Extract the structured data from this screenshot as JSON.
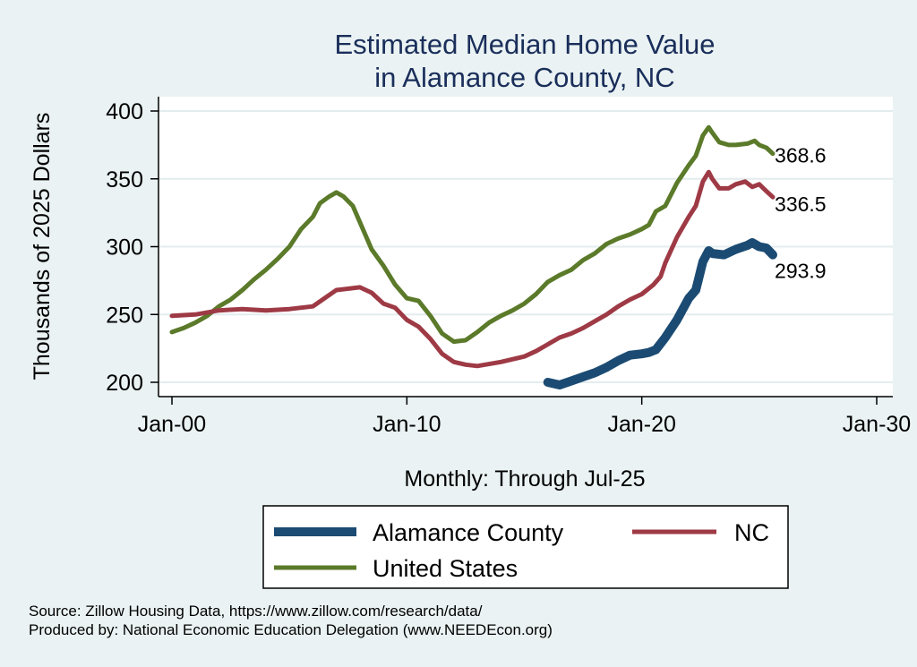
{
  "chart_data": {
    "type": "line",
    "title": [
      "Estimated Median Home Value",
      "in Alamance County, NC"
    ],
    "xlabel": "Monthly: Through Jul-25",
    "ylabel": "Thousands of 2025 Dollars",
    "x_ticks": [
      {
        "label": "Jan-00",
        "year": 2000
      },
      {
        "label": "Jan-10",
        "year": 2010
      },
      {
        "label": "Jan-20",
        "year": 2020
      },
      {
        "label": "Jan-30",
        "year": 2030
      }
    ],
    "y_ticks": [
      200,
      250,
      300,
      350,
      400
    ],
    "xlim": [
      2000,
      2030
    ],
    "ylim": [
      200,
      400
    ],
    "grid": true,
    "legend_position": "bottom",
    "series": [
      {
        "name": "Alamance County",
        "color": "#1b4b73",
        "width": 10,
        "end_label": "293.9",
        "points": [
          [
            2016.0,
            200
          ],
          [
            2016.5,
            198
          ],
          [
            2017.0,
            201
          ],
          [
            2017.5,
            204
          ],
          [
            2018.0,
            207
          ],
          [
            2018.5,
            211
          ],
          [
            2019.0,
            216
          ],
          [
            2019.5,
            220
          ],
          [
            2020.0,
            221
          ],
          [
            2020.3,
            222
          ],
          [
            2020.6,
            224
          ],
          [
            2021.0,
            233
          ],
          [
            2021.5,
            246
          ],
          [
            2022.0,
            262
          ],
          [
            2022.3,
            268
          ],
          [
            2022.6,
            289
          ],
          [
            2022.85,
            297
          ],
          [
            2023.0,
            295
          ],
          [
            2023.5,
            294
          ],
          [
            2024.0,
            298
          ],
          [
            2024.5,
            301
          ],
          [
            2024.7,
            303
          ],
          [
            2025.0,
            300
          ],
          [
            2025.3,
            299
          ],
          [
            2025.58,
            294
          ]
        ]
      },
      {
        "name": "NC",
        "color": "#9e3a45",
        "width": 5,
        "end_label": "336.5",
        "points": [
          [
            2000.0,
            249
          ],
          [
            2001.0,
            250
          ],
          [
            2002.0,
            253
          ],
          [
            2003.0,
            254
          ],
          [
            2004.0,
            253
          ],
          [
            2005.0,
            254
          ],
          [
            2006.0,
            256
          ],
          [
            2006.5,
            262
          ],
          [
            2007.0,
            268
          ],
          [
            2008.0,
            270
          ],
          [
            2008.5,
            266
          ],
          [
            2009.0,
            258
          ],
          [
            2009.5,
            255
          ],
          [
            2010.0,
            246
          ],
          [
            2010.5,
            241
          ],
          [
            2011.0,
            232
          ],
          [
            2011.5,
            221
          ],
          [
            2012.0,
            215
          ],
          [
            2012.5,
            213
          ],
          [
            2013.0,
            212
          ],
          [
            2014.0,
            215
          ],
          [
            2015.0,
            219
          ],
          [
            2015.5,
            223
          ],
          [
            2016.0,
            228
          ],
          [
            2016.5,
            233
          ],
          [
            2017.0,
            236
          ],
          [
            2017.5,
            240
          ],
          [
            2018.0,
            245
          ],
          [
            2018.5,
            250
          ],
          [
            2019.0,
            256
          ],
          [
            2019.5,
            261
          ],
          [
            2020.0,
            265
          ],
          [
            2020.5,
            272
          ],
          [
            2020.8,
            278
          ],
          [
            2021.0,
            288
          ],
          [
            2021.5,
            307
          ],
          [
            2022.0,
            322
          ],
          [
            2022.3,
            330
          ],
          [
            2022.6,
            348
          ],
          [
            2022.85,
            355
          ],
          [
            2023.0,
            350
          ],
          [
            2023.3,
            343
          ],
          [
            2023.7,
            343
          ],
          [
            2024.0,
            346
          ],
          [
            2024.4,
            348
          ],
          [
            2024.7,
            344
          ],
          [
            2025.0,
            346
          ],
          [
            2025.3,
            341
          ],
          [
            2025.58,
            336.5
          ]
        ]
      },
      {
        "name": "United States",
        "color": "#5b7a2a",
        "width": 5,
        "end_label": "368.6",
        "points": [
          [
            2000.0,
            237
          ],
          [
            2000.5,
            240
          ],
          [
            2001.0,
            244
          ],
          [
            2001.5,
            249
          ],
          [
            2002.0,
            256
          ],
          [
            2002.5,
            261
          ],
          [
            2003.0,
            268
          ],
          [
            2003.5,
            276
          ],
          [
            2004.0,
            283
          ],
          [
            2004.5,
            291
          ],
          [
            2005.0,
            300
          ],
          [
            2005.5,
            313
          ],
          [
            2006.0,
            322
          ],
          [
            2006.3,
            332
          ],
          [
            2006.7,
            337
          ],
          [
            2007.0,
            340
          ],
          [
            2007.3,
            337
          ],
          [
            2007.7,
            330
          ],
          [
            2008.0,
            318
          ],
          [
            2008.5,
            298
          ],
          [
            2009.0,
            286
          ],
          [
            2009.5,
            272
          ],
          [
            2010.0,
            262
          ],
          [
            2010.5,
            260
          ],
          [
            2011.0,
            249
          ],
          [
            2011.5,
            236
          ],
          [
            2012.0,
            230
          ],
          [
            2012.5,
            231
          ],
          [
            2013.0,
            237
          ],
          [
            2013.5,
            244
          ],
          [
            2014.0,
            249
          ],
          [
            2014.5,
            253
          ],
          [
            2015.0,
            258
          ],
          [
            2015.5,
            265
          ],
          [
            2016.0,
            274
          ],
          [
            2016.5,
            279
          ],
          [
            2017.0,
            283
          ],
          [
            2017.5,
            290
          ],
          [
            2018.0,
            295
          ],
          [
            2018.5,
            302
          ],
          [
            2019.0,
            306
          ],
          [
            2019.5,
            309
          ],
          [
            2020.0,
            313
          ],
          [
            2020.3,
            316
          ],
          [
            2020.6,
            326
          ],
          [
            2021.0,
            330
          ],
          [
            2021.5,
            347
          ],
          [
            2022.0,
            360
          ],
          [
            2022.3,
            367
          ],
          [
            2022.6,
            382
          ],
          [
            2022.85,
            388
          ],
          [
            2023.0,
            384
          ],
          [
            2023.3,
            377
          ],
          [
            2023.7,
            375
          ],
          [
            2024.0,
            375
          ],
          [
            2024.5,
            376
          ],
          [
            2024.8,
            378
          ],
          [
            2025.0,
            375
          ],
          [
            2025.3,
            373
          ],
          [
            2025.58,
            368.6
          ]
        ]
      }
    ]
  },
  "footer": {
    "source": "Source: Zillow Housing Data, https://www.zillow.com/research/data/",
    "produced_by": "Produced by: National Economic Education Delegation (www.NEEDEcon.org)"
  }
}
